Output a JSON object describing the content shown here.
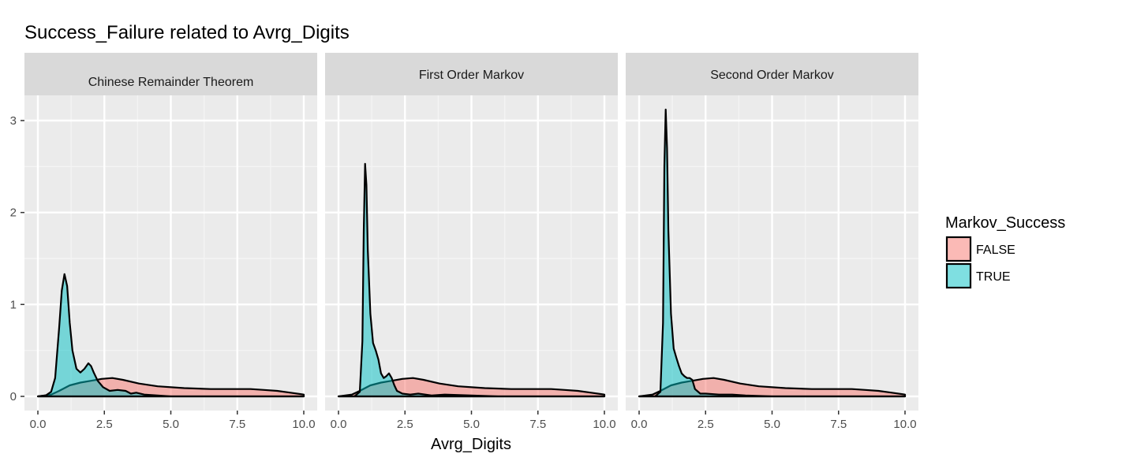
{
  "chart_data": {
    "type": "area",
    "title": "Success_Failure related to Avrg_Digits",
    "xlabel": "Avrg_Digits",
    "ylabel": "",
    "xlim": [
      0,
      10
    ],
    "ylim": [
      0,
      3.2
    ],
    "x_ticks": [
      "0.0",
      "2.5",
      "5.0",
      "7.5",
      "10.0"
    ],
    "y_ticks": [
      "0",
      "1",
      "2",
      "3"
    ],
    "grid": true,
    "legend": {
      "title": "Markov_Success",
      "position": "right",
      "entries": [
        {
          "label": "FALSE",
          "color": "#F8766D"
        },
        {
          "label": "TRUE",
          "color": "#00BFC4"
        }
      ]
    },
    "panels": [
      {
        "name": "Chinese Remainder Theorem",
        "series": [
          {
            "name": "FALSE",
            "color": "#F8766D",
            "x": [
              0.0,
              0.5,
              0.8,
              1.2,
              1.6,
              2.0,
              2.4,
              2.8,
              3.2,
              3.8,
              4.5,
              5.5,
              6.5,
              7.5,
              8.0,
              8.5,
              9.0,
              9.5,
              10.0
            ],
            "y": [
              0.0,
              0.02,
              0.06,
              0.12,
              0.15,
              0.17,
              0.19,
              0.2,
              0.18,
              0.14,
              0.11,
              0.09,
              0.08,
              0.08,
              0.08,
              0.07,
              0.06,
              0.04,
              0.02
            ]
          },
          {
            "name": "TRUE",
            "color": "#00BFC4",
            "x": [
              0.0,
              0.3,
              0.5,
              0.65,
              0.8,
              0.9,
              1.0,
              1.1,
              1.2,
              1.3,
              1.45,
              1.6,
              1.75,
              1.9,
              2.0,
              2.1,
              2.25,
              2.45,
              2.7,
              3.0,
              3.3,
              3.5,
              3.7,
              4.0,
              4.5,
              5.0,
              6.0,
              10.0
            ],
            "y": [
              0.0,
              0.01,
              0.05,
              0.2,
              0.75,
              1.15,
              1.33,
              1.2,
              0.8,
              0.5,
              0.3,
              0.26,
              0.3,
              0.36,
              0.33,
              0.26,
              0.17,
              0.1,
              0.06,
              0.07,
              0.06,
              0.03,
              0.04,
              0.02,
              0.01,
              0.0,
              0.0,
              0.0
            ]
          }
        ]
      },
      {
        "name": "First Order Markov",
        "series": [
          {
            "name": "FALSE",
            "color": "#F8766D",
            "x": [
              0.0,
              0.5,
              0.8,
              1.2,
              1.6,
              2.0,
              2.4,
              2.8,
              3.2,
              3.8,
              4.5,
              5.5,
              6.5,
              7.5,
              8.0,
              8.5,
              9.0,
              9.5,
              10.0
            ],
            "y": [
              0.0,
              0.02,
              0.06,
              0.12,
              0.15,
              0.17,
              0.19,
              0.2,
              0.18,
              0.14,
              0.11,
              0.09,
              0.08,
              0.08,
              0.08,
              0.07,
              0.06,
              0.04,
              0.02
            ]
          },
          {
            "name": "TRUE",
            "color": "#00BFC4",
            "x": [
              0.0,
              0.6,
              0.8,
              0.9,
              0.95,
              1.0,
              1.05,
              1.1,
              1.2,
              1.3,
              1.4,
              1.5,
              1.6,
              1.7,
              1.8,
              1.9,
              2.0,
              2.1,
              2.2,
              2.4,
              2.7,
              3.0,
              3.5,
              4.0,
              5.0,
              6.0,
              10.0
            ],
            "y": [
              0.0,
              0.0,
              0.05,
              0.6,
              1.8,
              2.53,
              2.3,
              1.6,
              0.9,
              0.58,
              0.5,
              0.4,
              0.25,
              0.2,
              0.22,
              0.25,
              0.2,
              0.12,
              0.06,
              0.03,
              0.02,
              0.03,
              0.01,
              0.02,
              0.01,
              0.0,
              0.0
            ]
          }
        ]
      },
      {
        "name": "Second Order Markov",
        "series": [
          {
            "name": "FALSE",
            "color": "#F8766D",
            "x": [
              0.0,
              0.5,
              0.8,
              1.2,
              1.6,
              2.0,
              2.4,
              2.8,
              3.2,
              3.8,
              4.5,
              5.5,
              6.5,
              7.5,
              8.0,
              8.5,
              9.0,
              9.5,
              10.0
            ],
            "y": [
              0.0,
              0.02,
              0.06,
              0.12,
              0.15,
              0.17,
              0.19,
              0.2,
              0.18,
              0.14,
              0.11,
              0.09,
              0.08,
              0.08,
              0.08,
              0.07,
              0.06,
              0.04,
              0.02
            ]
          },
          {
            "name": "TRUE",
            "color": "#00BFC4",
            "x": [
              0.0,
              0.6,
              0.8,
              0.9,
              0.95,
              1.0,
              1.05,
              1.1,
              1.2,
              1.3,
              1.4,
              1.5,
              1.6,
              1.7,
              1.8,
              1.9,
              2.0,
              2.1,
              2.3,
              2.5,
              3.0,
              3.5,
              4.0,
              5.0,
              10.0
            ],
            "y": [
              0.0,
              0.0,
              0.05,
              0.8,
              2.5,
              3.12,
              2.7,
              1.8,
              0.9,
              0.52,
              0.42,
              0.33,
              0.25,
              0.22,
              0.2,
              0.2,
              0.18,
              0.08,
              0.03,
              0.03,
              0.02,
              0.02,
              0.01,
              0.0,
              0.0
            ]
          }
        ]
      }
    ]
  }
}
